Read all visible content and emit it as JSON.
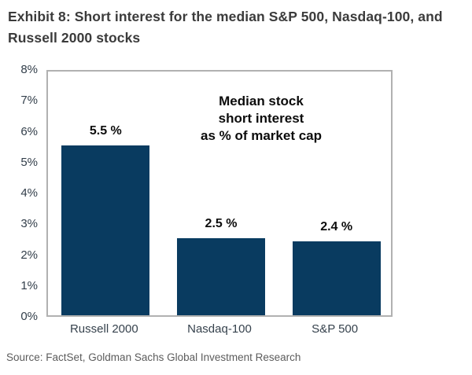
{
  "title": "Exhibit 8: Short interest for the median S&P 500, Nasdaq-100, and Russell 2000 stocks",
  "source": "Source: FactSet, Goldman Sachs Global Investment Research",
  "annotation": {
    "lines": [
      "Median stock",
      "short interest",
      "as % of market cap"
    ]
  },
  "colors": {
    "bar": "#093b60",
    "axis_text": "#323e4a",
    "plot_border": "#b1b1b1",
    "title_text": "#3b3b3b",
    "value_label_text": "#0d0d0d",
    "source_text": "#5c5c5c"
  },
  "chart_data": {
    "type": "bar",
    "categories": [
      "Russell 2000",
      "Nasdaq-100",
      "S&P 500"
    ],
    "values": [
      5.5,
      2.5,
      2.4
    ],
    "value_labels": [
      "5.5 %",
      "2.5 %",
      "2.4 %"
    ],
    "title": "Median stock short interest as % of market cap",
    "xlabel": "",
    "ylabel": "",
    "ylim": [
      0,
      8
    ],
    "ytick_step": 1,
    "ytick_suffix": "%",
    "grid": false,
    "legend": "none",
    "bar_color": "#093b60"
  }
}
